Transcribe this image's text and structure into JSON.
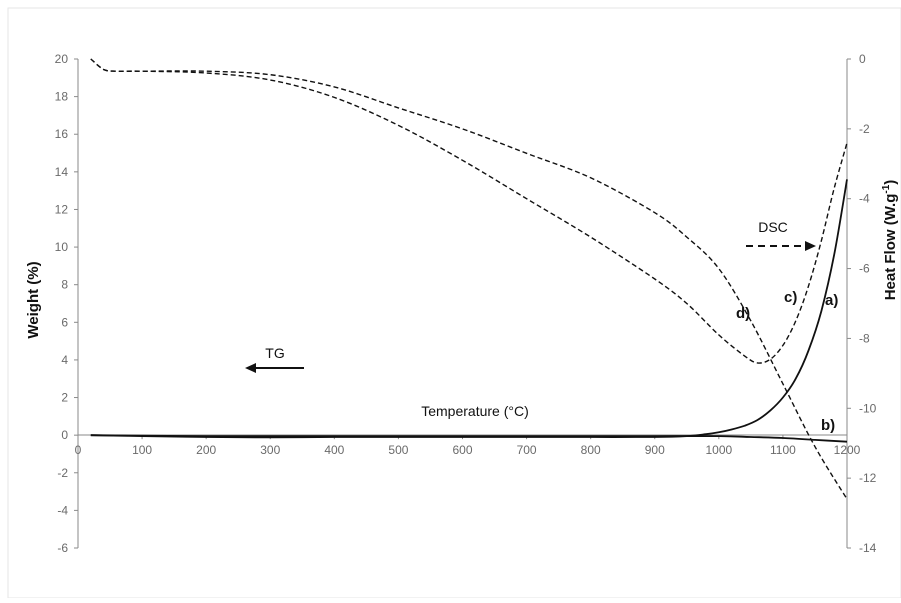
{
  "chart_data": {
    "type": "line",
    "xlabel": "Temperature (°C)",
    "ylabel_left": "Weight  (%)",
    "ylabel_right": "Heat Flow (W.g",
    "ylabel_right_sup": "-1",
    "ylabel_right_close": ")",
    "xlim": [
      0,
      1200
    ],
    "ylim_left": [
      -6,
      20
    ],
    "ylim_right": [
      -14,
      0
    ],
    "x_ticks": [
      "0",
      "100",
      "200",
      "300",
      "400",
      "500",
      "600",
      "700",
      "800",
      "900",
      "1000",
      "1100",
      "1200"
    ],
    "y_left_ticks": [
      "20",
      "18",
      "16",
      "14",
      "12",
      "10",
      "8",
      "6",
      "4",
      "2",
      "0",
      "-2",
      "-4",
      "-6"
    ],
    "y_right_ticks": [
      "0",
      "-2",
      "-4",
      "-6",
      "-8",
      "-10",
      "-12",
      "-14"
    ],
    "grid": false,
    "series": [
      {
        "name": "a)",
        "axis": "left",
        "style": "solid",
        "x": [
          20,
          100,
          200,
          300,
          400,
          500,
          600,
          700,
          800,
          900,
          950,
          980,
          1000,
          1020,
          1040,
          1060,
          1080,
          1100,
          1120,
          1140,
          1160,
          1180,
          1200
        ],
        "y": [
          0.0,
          -0.05,
          -0.1,
          -0.12,
          -0.1,
          -0.1,
          -0.1,
          -0.1,
          -0.1,
          -0.1,
          -0.05,
          0.05,
          0.15,
          0.3,
          0.5,
          0.8,
          1.3,
          2.0,
          3.0,
          4.5,
          6.6,
          9.6,
          13.6
        ]
      },
      {
        "name": "b)",
        "axis": "left",
        "style": "solid",
        "x": [
          20,
          200,
          400,
          600,
          800,
          900,
          1000,
          1050,
          1100,
          1150,
          1200
        ],
        "y": [
          0.0,
          -0.05,
          -0.05,
          -0.05,
          -0.05,
          -0.05,
          -0.05,
          -0.1,
          -0.15,
          -0.25,
          -0.35
        ]
      },
      {
        "name": "c)",
        "axis": "right",
        "style": "dashed",
        "x": [
          20,
          40,
          60,
          100,
          200,
          300,
          400,
          500,
          600,
          700,
          800,
          900,
          950,
          1000,
          1040,
          1060,
          1080,
          1100,
          1120,
          1140,
          1160,
          1180,
          1200
        ],
        "y": [
          0.0,
          -0.3,
          -0.35,
          -0.35,
          -0.4,
          -0.6,
          -1.1,
          -1.9,
          -2.9,
          -4.0,
          -5.1,
          -6.3,
          -7.0,
          -7.9,
          -8.5,
          -8.7,
          -8.6,
          -8.2,
          -7.5,
          -6.5,
          -5.2,
          -3.7,
          -2.4
        ]
      },
      {
        "name": "d)",
        "axis": "right",
        "style": "dashed",
        "x": [
          20,
          40,
          60,
          100,
          200,
          300,
          400,
          500,
          600,
          700,
          800,
          900,
          950,
          1000,
          1050,
          1100,
          1150,
          1200
        ],
        "y": [
          0.0,
          -0.3,
          -0.35,
          -0.35,
          -0.35,
          -0.45,
          -0.8,
          -1.4,
          -2.0,
          -2.7,
          -3.4,
          -4.4,
          -5.1,
          -6.0,
          -7.5,
          -9.3,
          -11.1,
          -12.6
        ]
      }
    ],
    "annotations": {
      "tg_label": "TG",
      "dsc_label": "DSC",
      "label_a": "a)",
      "label_b": "b)",
      "label_c": "c)",
      "label_d": "d)"
    }
  }
}
